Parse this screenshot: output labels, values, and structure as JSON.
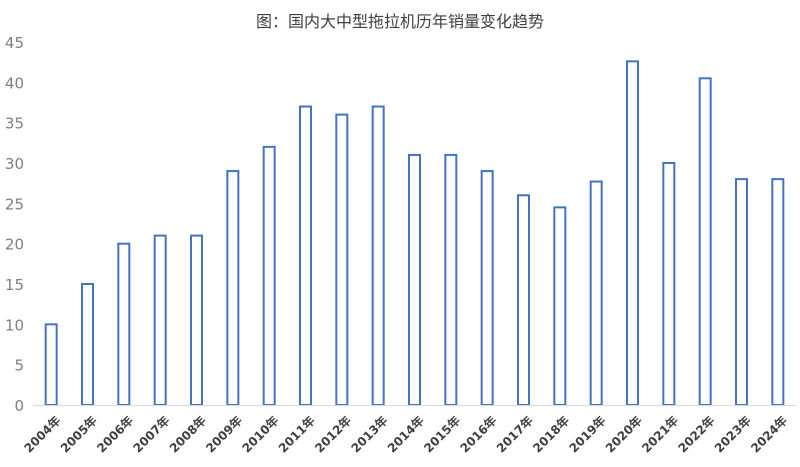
{
  "chart_data": {
    "type": "bar",
    "title": "图：国内大中型拖拉机历年销量变化趋势",
    "xlabel": "",
    "ylabel": "",
    "ylim": [
      0,
      45
    ],
    "yticks": [
      0,
      5,
      10,
      15,
      20,
      25,
      30,
      35,
      40,
      45
    ],
    "grid": false,
    "legend": "none",
    "bar_style": "outline",
    "bar_color": "#4472C4",
    "categories": [
      "2004年",
      "2005年",
      "2006年",
      "2007年",
      "2008年",
      "2009年",
      "2010年",
      "2011年",
      "2012年",
      "2013年",
      "2014年",
      "2015年",
      "2016年",
      "2017年",
      "2018年",
      "2019年",
      "2020年",
      "2021年",
      "2022年",
      "2023年",
      "2024年"
    ],
    "values": [
      10,
      15,
      20,
      21,
      21,
      29,
      32,
      37,
      36,
      37,
      31,
      31,
      29,
      26,
      24.5,
      27.7,
      42.6,
      30,
      40.5,
      28,
      28
    ]
  }
}
